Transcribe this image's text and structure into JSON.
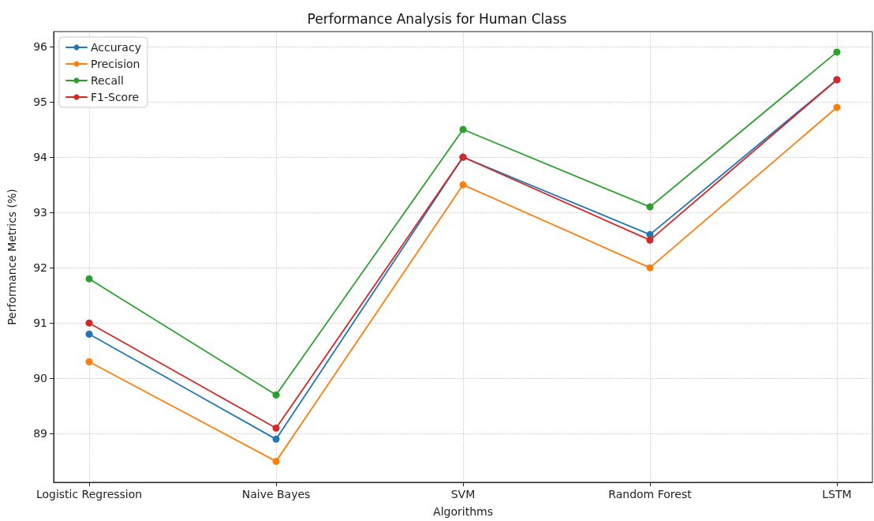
{
  "chart_data": {
    "type": "line",
    "title": "Performance Analysis for Human Class",
    "xlabel": "Algorithms",
    "ylabel": "Performance Metrics (%)",
    "categories": [
      "Logistic Regression",
      "Naive Bayes",
      "SVM",
      "Random Forest",
      "LSTM"
    ],
    "series": [
      {
        "name": "Accuracy",
        "color": "#1f77b4",
        "values": [
          90.8,
          88.9,
          94.0,
          92.6,
          95.4
        ]
      },
      {
        "name": "Precision",
        "color": "#ff7f0e",
        "values": [
          90.3,
          88.5,
          93.5,
          92.0,
          94.9
        ]
      },
      {
        "name": "Recall",
        "color": "#2ca02c",
        "values": [
          91.8,
          89.7,
          94.5,
          93.1,
          95.9
        ]
      },
      {
        "name": "F1-Score",
        "color": "#d62728",
        "values": [
          91.0,
          89.1,
          94.0,
          92.5,
          95.4
        ]
      }
    ],
    "ylim": [
      88.12,
      96.27
    ],
    "yticks": [
      89,
      90,
      91,
      92,
      93,
      94,
      95,
      96
    ],
    "grid": true,
    "legend": "top left",
    "marker": "circle",
    "line_style": "solid"
  }
}
